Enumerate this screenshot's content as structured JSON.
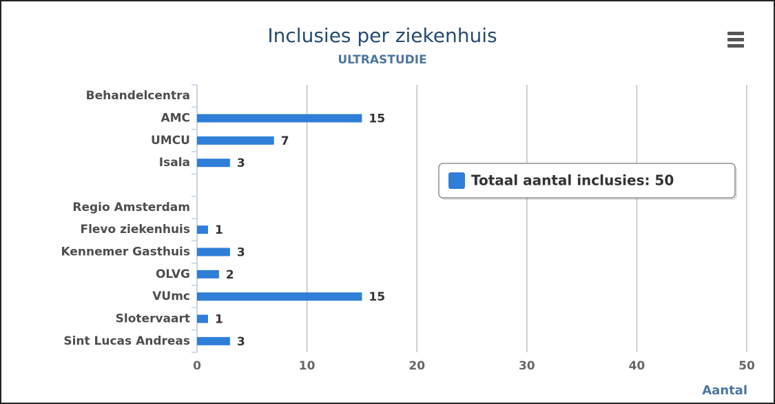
{
  "chart_data": {
    "type": "bar",
    "orientation": "horizontal",
    "title": "Inclusies per ziekenhuis",
    "subtitle": "ULTRASTUDIE",
    "categories": [
      "Behandelcentra",
      "AMC",
      "UMCU",
      "Isala",
      null,
      "Regio Amsterdam",
      "Flevo ziekenhuis",
      "Kennemer Gasthuis",
      "OLVG",
      "VUmc",
      "Slotervaart",
      "Sint Lucas Andreas"
    ],
    "series": [
      {
        "name": "Totaal aantal inclusies: 50",
        "color": "#2f7ed8",
        "values": [
          null,
          15,
          7,
          3,
          null,
          null,
          1,
          3,
          2,
          15,
          1,
          3
        ]
      }
    ],
    "xlabel": "Aantal",
    "xlim": [
      0,
      50
    ],
    "xticks": [
      0,
      10,
      20,
      30,
      40,
      50
    ],
    "grid": true,
    "legend": "right"
  }
}
